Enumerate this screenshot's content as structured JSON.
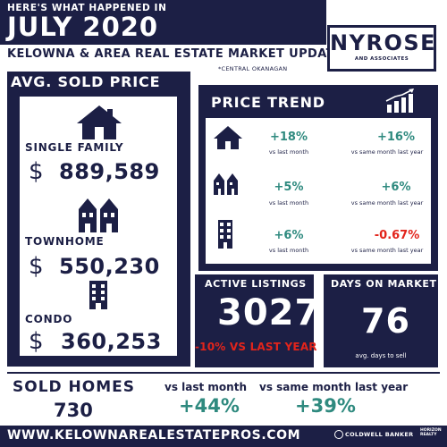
{
  "header": {
    "kicker": "HERE'S WHAT HAPPENED IN",
    "month": "JULY 2020",
    "subtitle": "KELOWNA &  AREA REAL ESTATE MARKET UPDATE",
    "region_note": "*CENTRAL OKANAGAN"
  },
  "logo": {
    "name": "NYROSE",
    "tagline": "AND ASSOCIATES"
  },
  "avg_sold_price": {
    "title": "AVG. SOLD PRICE",
    "currency_symbol": "$",
    "items": [
      {
        "label": "SINGLE FAMILY",
        "price": "889,589",
        "icon": "house-icon"
      },
      {
        "label": "TOWNHOME",
        "price": "550,230",
        "icon": "townhome-icon"
      },
      {
        "label": "CONDO",
        "price": "360,253",
        "icon": "condo-icon"
      }
    ]
  },
  "price_trend": {
    "title": "PRICE TREND",
    "icon": "chart-growth-icon",
    "rows": [
      {
        "icon": "house-icon",
        "month_change": "+18%",
        "month_label": "vs last month",
        "year_change": "+16%",
        "year_label": "vs same month last year"
      },
      {
        "icon": "townhome-icon",
        "month_change": "+5%",
        "month_label": "vs last month",
        "year_change": "+6%",
        "year_label": "vs same month last year"
      },
      {
        "icon": "condo-icon",
        "month_change": "+6%",
        "month_label": "vs last month",
        "year_change": "-0.67%",
        "year_label": "vs same month last year"
      }
    ]
  },
  "active_listings": {
    "title": "ACTIVE LISTINGS",
    "value": "3027",
    "delta": "-10% VS LAST YEAR"
  },
  "days_on_market": {
    "title": "DAYS ON MARKET",
    "value": "76",
    "sub": "avg. days to sell"
  },
  "sold_homes": {
    "title": "SOLD HOMES",
    "value": "730",
    "month_label": "vs last month",
    "month_change": "+44%",
    "year_label": "vs same month last year",
    "year_change": "+39%"
  },
  "footer": {
    "website": "WWW.KELOWNAREALESTATEPROS.COM",
    "brokerage": "COLDWELL BANKER",
    "brokerage_sub": "HORIZON REALTY"
  },
  "colors": {
    "navy": "#1c1f45",
    "teal_positive": "#2f8a7f",
    "red_negative": "#e2241b"
  }
}
